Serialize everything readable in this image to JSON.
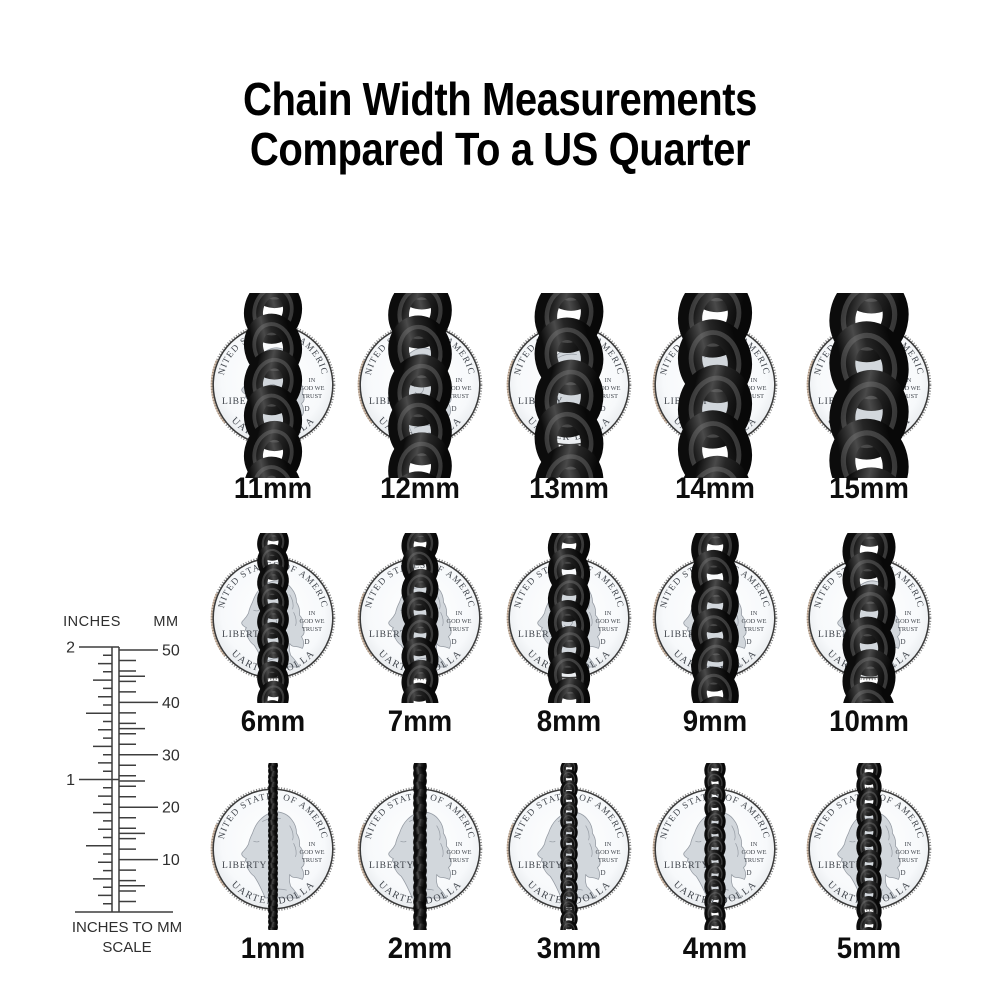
{
  "title": {
    "line1": "Chain Width Measurements",
    "line2": "Compared To a US Quarter"
  },
  "grid": {
    "rows": [
      {
        "labels": [
          "11mm",
          "12mm",
          "13mm",
          "14mm",
          "15mm"
        ],
        "widths_mm": [
          11,
          12,
          13,
          14,
          15
        ]
      },
      {
        "labels": [
          "6mm",
          "7mm",
          "8mm",
          "9mm",
          "10mm"
        ],
        "widths_mm": [
          6,
          7,
          8,
          9,
          10
        ]
      },
      {
        "labels": [
          "1mm",
          "2mm",
          "3mm",
          "4mm",
          "5mm"
        ],
        "widths_mm": [
          1,
          2,
          3,
          4,
          5
        ]
      }
    ]
  },
  "coin": {
    "top_arc_text": "UNITED STATES OF AMERICA",
    "bottom_arc_text": "QUARTER DOLLAR",
    "left_text": "LIBERTY",
    "motto_lines": [
      "IN",
      "GOD WE",
      "TRUST"
    ],
    "mint_mark": "D"
  },
  "ruler": {
    "header_left": "INCHES",
    "header_right": "MM",
    "inch_labels": [
      "2",
      "1"
    ],
    "mm_labels": [
      "50",
      "40",
      "30",
      "20",
      "10"
    ],
    "caption_line1": "INCHES TO MM",
    "caption_line2": "SCALE"
  },
  "colors": {
    "background": "#ffffff",
    "title_text": "#000000",
    "label_text": "#0d0d0d",
    "chain_dark": "#0c0c0c",
    "chain_mid": "#4a4a4a",
    "chain_highlight": "#808080",
    "coin_face": "#f7f9fb",
    "coin_engraving": "#41464d",
    "coin_profile_fill": "#d2d7dc",
    "coin_profile_line": "#969ca4",
    "coin_edge_copper": "#b5906f",
    "coin_edge_dark": "#3a3a3a",
    "ruler_line": "#3d3d3d",
    "ruler_text": "#2e2e2e"
  }
}
